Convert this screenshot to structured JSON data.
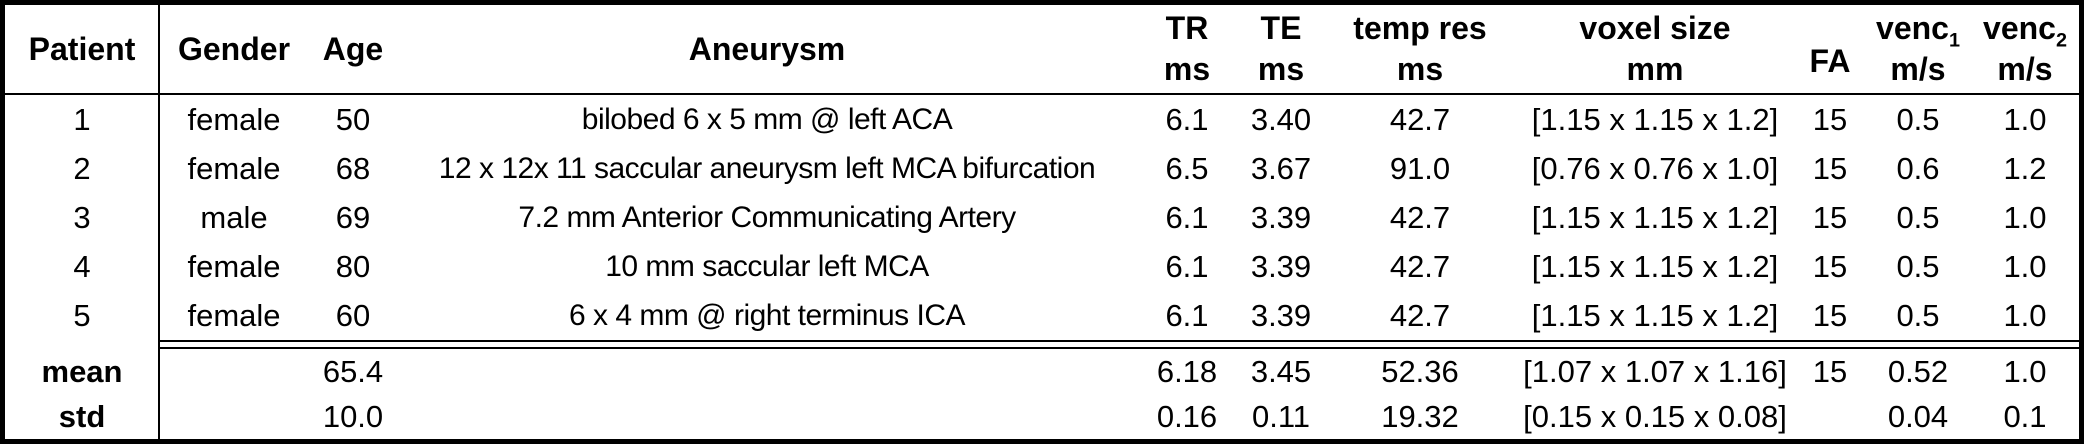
{
  "table": {
    "header": {
      "patient": "Patient",
      "gender": "Gender",
      "age": "Age",
      "aneurysm": "Aneurysm",
      "tr": "TR",
      "tr_unit": "ms",
      "te": "TE",
      "te_unit": "ms",
      "temp_res": "temp res",
      "temp_res_unit": "ms",
      "voxel": "voxel size",
      "voxel_unit": "mm",
      "fa": "FA",
      "venc": "venc",
      "venc1_sub": "1",
      "venc2_sub": "2",
      "venc_unit": "m/s"
    },
    "rows": [
      {
        "patient": "1",
        "gender": "female",
        "age": "50",
        "aneurysm": "bilobed 6 x 5 mm @ left ACA",
        "tr": "6.1",
        "te": "3.40",
        "temp_res": "42.7",
        "voxel": "[1.15 x 1.15 x 1.2]",
        "fa": "15",
        "venc1": "0.5",
        "venc2": "1.0"
      },
      {
        "patient": "2",
        "gender": "female",
        "age": "68",
        "aneurysm": "12 x 12x 11 saccular aneurysm left MCA bifurcation",
        "tr": "6.5",
        "te": "3.67",
        "temp_res": "91.0",
        "voxel": "[0.76 x 0.76 x 1.0]",
        "fa": "15",
        "venc1": "0.6",
        "venc2": "1.2"
      },
      {
        "patient": "3",
        "gender": "male",
        "age": "69",
        "aneurysm": "7.2 mm Anterior Communicating Artery",
        "tr": "6.1",
        "te": "3.39",
        "temp_res": "42.7",
        "voxel": "[1.15 x 1.15 x 1.2]",
        "fa": "15",
        "venc1": "0.5",
        "venc2": "1.0"
      },
      {
        "patient": "4",
        "gender": "female",
        "age": "80",
        "aneurysm": "10 mm saccular left MCA",
        "tr": "6.1",
        "te": "3.39",
        "temp_res": "42.7",
        "voxel": "[1.15 x 1.15 x 1.2]",
        "fa": "15",
        "venc1": "0.5",
        "venc2": "1.0"
      },
      {
        "patient": "5",
        "gender": "female",
        "age": "60",
        "aneurysm": "6 x 4 mm @ right terminus ICA",
        "tr": "6.1",
        "te": "3.39",
        "temp_res": "42.7",
        "voxel": "[1.15 x 1.15 x 1.2]",
        "fa": "15",
        "venc1": "0.5",
        "venc2": "1.0"
      }
    ],
    "summary": [
      {
        "label": "mean",
        "age": "65.4",
        "tr": "6.18",
        "te": "3.45",
        "temp_res": "52.36",
        "voxel": "[1.07 x 1.07 x 1.16]",
        "fa": "15",
        "venc1": "0.52",
        "venc2": "1.0"
      },
      {
        "label": "std",
        "age": "10.0",
        "tr": "0.16",
        "te": "0.11",
        "temp_res": "19.32",
        "voxel": "[0.15 x 0.15 x 0.08]",
        "fa": "",
        "venc1": "0.04",
        "venc2": "0.1"
      }
    ],
    "colors": {
      "border": "#000000",
      "text": "#000000",
      "background": "#ffffff"
    }
  }
}
